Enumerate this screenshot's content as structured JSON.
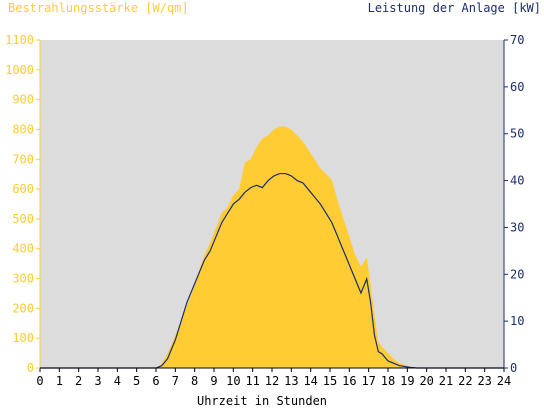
{
  "chart_data": {
    "type": "area",
    "title": "",
    "ylabel_left": "Bestrahlungsstärke [W/qm]",
    "ylabel_right": "Leistung der Anlage [kW]",
    "xlabel": "Uhrzeit in Stunden",
    "xlim": [
      0,
      24
    ],
    "ylim_left": [
      0,
      1100
    ],
    "ylim_right": [
      0,
      70
    ],
    "xticks": [
      "0",
      "1",
      "2",
      "3",
      "4",
      "5",
      "6",
      "7",
      "8",
      "9",
      "10",
      "11",
      "12",
      "13",
      "14",
      "15",
      "16",
      "17",
      "18",
      "19",
      "20",
      "21",
      "22",
      "23",
      "24"
    ],
    "yticks_left": [
      "0",
      "100",
      "200",
      "300",
      "400",
      "500",
      "600",
      "700",
      "800",
      "900",
      "1000",
      "1100"
    ],
    "yticks_right": [
      "0",
      "10",
      "20",
      "30",
      "40",
      "50",
      "60",
      "70"
    ],
    "grid": false,
    "colors": {
      "irradiance": "#ffcc33",
      "power": "#1a2f6b",
      "plot_bg": "#dcdcdc"
    },
    "series": [
      {
        "axis": "left",
        "type": "area",
        "x": [
          0,
          6.0,
          6.3,
          6.6,
          7.0,
          7.3,
          7.6,
          7.9,
          8.2,
          8.5,
          8.8,
          9.1,
          9.4,
          9.7,
          10.0,
          10.3,
          10.6,
          10.9,
          11.2,
          11.5,
          11.8,
          12.1,
          12.4,
          12.7,
          13.0,
          13.3,
          13.6,
          13.9,
          14.2,
          14.5,
          14.8,
          15.1,
          15.4,
          15.7,
          16.0,
          16.3,
          16.6,
          16.9,
          17.1,
          17.3,
          17.5,
          17.7,
          18.0,
          18.3,
          18.6,
          18.9,
          19.2,
          19.5,
          24
        ],
        "values": [
          0,
          0,
          15,
          50,
          110,
          160,
          210,
          260,
          320,
          380,
          420,
          470,
          520,
          540,
          580,
          600,
          690,
          700,
          740,
          770,
          780,
          800,
          810,
          810,
          800,
          780,
          760,
          730,
          700,
          670,
          650,
          630,
          560,
          500,
          440,
          380,
          340,
          370,
          280,
          180,
          90,
          70,
          50,
          30,
          15,
          10,
          3,
          0,
          0
        ]
      },
      {
        "axis": "right",
        "type": "line",
        "x": [
          0,
          6.0,
          6.3,
          6.6,
          7.0,
          7.3,
          7.6,
          7.9,
          8.2,
          8.5,
          8.8,
          9.1,
          9.4,
          9.7,
          10.0,
          10.3,
          10.6,
          10.9,
          11.2,
          11.5,
          11.8,
          12.1,
          12.4,
          12.7,
          13.0,
          13.3,
          13.6,
          13.9,
          14.2,
          14.5,
          14.8,
          15.1,
          15.4,
          15.7,
          16.0,
          16.3,
          16.6,
          16.9,
          17.1,
          17.3,
          17.5,
          17.7,
          18.0,
          18.3,
          18.6,
          18.9,
          19.2,
          19.5,
          24
        ],
        "values": [
          0,
          0,
          0.5,
          2,
          6,
          10,
          14,
          17,
          20,
          23,
          25,
          28,
          31,
          33,
          35,
          36,
          37.5,
          38.5,
          39,
          38.5,
          40,
          41,
          41.5,
          41.5,
          41,
          40,
          39.5,
          38,
          36.5,
          35,
          33,
          31,
          28,
          25,
          22,
          19,
          16,
          19,
          14,
          7,
          3.5,
          3,
          1.5,
          1,
          0.5,
          0.3,
          0.1,
          0,
          0
        ]
      }
    ]
  }
}
